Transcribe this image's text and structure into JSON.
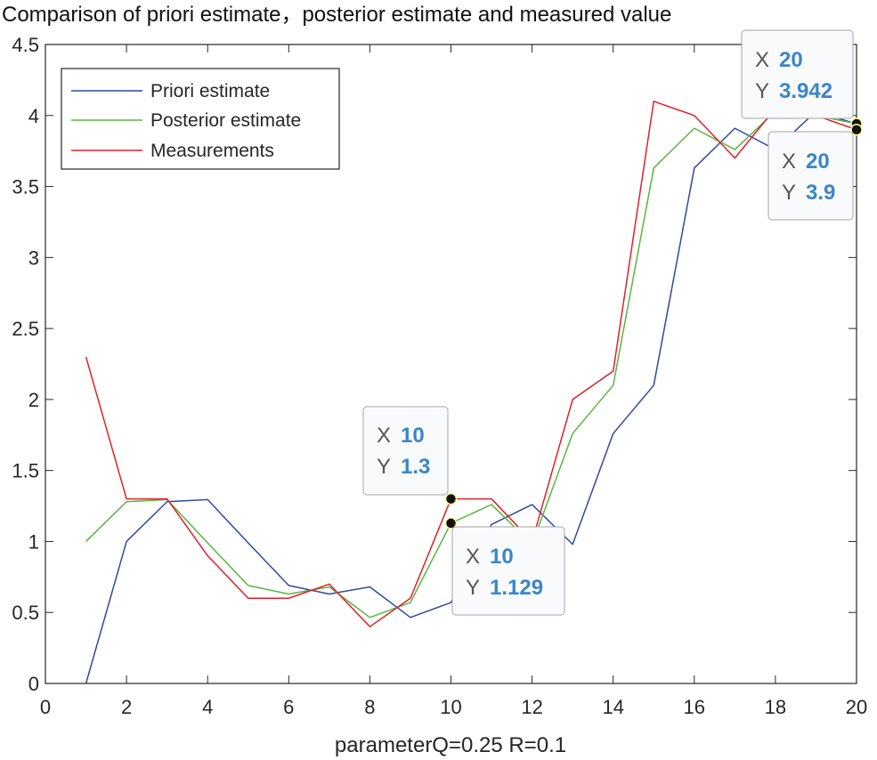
{
  "chart_data": {
    "type": "line",
    "title": "Comparison of priori estimate，posterior estimate and measured value",
    "xlabel": "parameterQ=0.25 R=0.1",
    "ylabel": "",
    "xlim": [
      0,
      20
    ],
    "ylim": [
      0,
      4.5
    ],
    "xticks": [
      0,
      2,
      4,
      6,
      8,
      10,
      12,
      14,
      16,
      18,
      20
    ],
    "yticks": [
      0,
      0.5,
      1,
      1.5,
      2,
      2.5,
      3,
      3.5,
      4,
      4.5
    ],
    "grid": false,
    "legend_position": "top-left",
    "x": [
      1,
      2,
      3,
      4,
      5,
      6,
      7,
      8,
      9,
      10,
      11,
      12,
      13,
      14,
      15,
      16,
      17,
      18,
      19,
      20
    ],
    "series": [
      {
        "name": "Priori estimate",
        "color": "#2e4a9e",
        "values": [
          0,
          1.0,
          1.28,
          1.295,
          0.99,
          0.69,
          0.63,
          0.68,
          0.465,
          0.57,
          1.12,
          1.26,
          0.98,
          1.76,
          2.1,
          3.63,
          3.91,
          3.76,
          4.03,
          3.94
        ]
      },
      {
        "name": "Posterior estimate",
        "color": "#5ab540",
        "values": [
          1.0,
          1.28,
          1.295,
          0.99,
          0.69,
          0.63,
          0.68,
          0.465,
          0.57,
          1.129,
          1.26,
          0.98,
          1.76,
          2.1,
          3.63,
          3.91,
          3.76,
          4.03,
          4.0,
          3.942
        ]
      },
      {
        "name": "Measurements",
        "color": "#e0202a",
        "values": [
          2.3,
          1.3,
          1.3,
          0.9,
          0.6,
          0.6,
          0.7,
          0.4,
          0.6,
          1.3,
          1.3,
          1.0,
          2.0,
          2.2,
          4.1,
          4.0,
          3.7,
          4.05,
          4.0,
          3.9
        ]
      }
    ],
    "datatips": [
      {
        "x_label": "X",
        "x_value": "10",
        "y_label": "Y",
        "y_value": "1.3",
        "x": 10,
        "y": 1.3
      },
      {
        "x_label": "X",
        "x_value": "10",
        "y_label": "Y",
        "y_value": "1.129",
        "x": 10,
        "y": 1.129
      },
      {
        "x_label": "X",
        "x_value": "20",
        "y_label": "Y",
        "y_value": "3.942",
        "x": 20,
        "y": 3.942
      },
      {
        "x_label": "X",
        "x_value": "20",
        "y_label": "Y",
        "y_value": "3.9",
        "x": 20,
        "y": 3.9
      }
    ]
  }
}
